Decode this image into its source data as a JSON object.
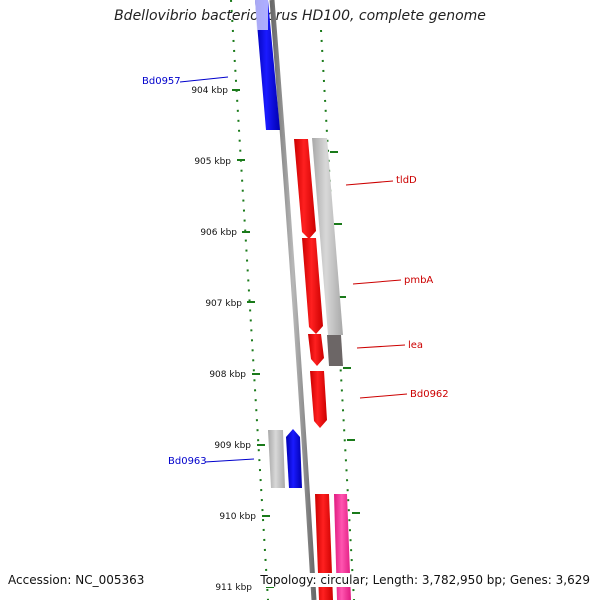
{
  "title": "Bdellovibrio bacteriovorus HD100, complete genome",
  "accession": "Accession: NC_005363",
  "summary": "Topology: circular; Length: 3,782,950 bp; Genes: 3,629",
  "kbp_labels": [
    "904 kbp",
    "905 kbp",
    "906 kbp",
    "907 kbp",
    "908 kbp",
    "909 kbp",
    "910 kbp",
    "911 kbp"
  ],
  "gene_labels": {
    "bd0957": "Bd0957",
    "tldD": "tldD",
    "pmbA": "pmbA",
    "lea": "lea",
    "bd0962": "Bd0962",
    "bd0963": "Bd0963"
  },
  "colors": {
    "forward": "#ff0000",
    "reverse": "#0000ff",
    "other": "#ff3399",
    "dna": "#808080",
    "ticks": "#1a7a1a"
  }
}
